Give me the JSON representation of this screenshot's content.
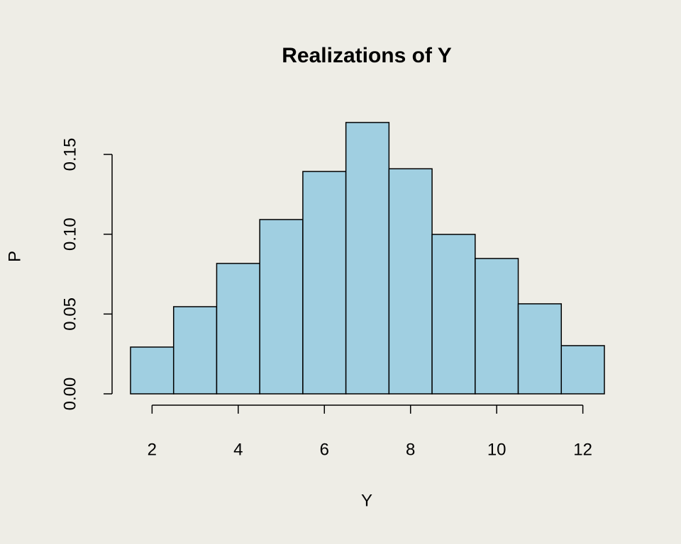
{
  "chart_data": {
    "type": "histogram",
    "title": "Realizations of Y",
    "xlabel": "Y",
    "ylabel": "P",
    "bins": [
      1.5,
      2.5,
      3.5,
      4.5,
      5.5,
      6.5,
      7.5,
      8.5,
      9.5,
      10.5,
      11.5,
      12.5
    ],
    "values": [
      0.0293,
      0.0546,
      0.0817,
      0.1092,
      0.1393,
      0.17,
      0.141,
      0.0999,
      0.0848,
      0.0564,
      0.0302
    ],
    "color": "#a0cfe1",
    "xlim": [
      1.5,
      12.5
    ],
    "xticks": [
      2,
      4,
      6,
      8,
      10,
      12
    ],
    "ylim": [
      0,
      0.15
    ],
    "yticks": [
      {
        "value": 0,
        "label": "0.00"
      },
      {
        "value": 0.05,
        "label": "0.05"
      },
      {
        "value": 0.1,
        "label": "0.10"
      },
      {
        "value": 0.15,
        "label": "0.15"
      }
    ]
  }
}
